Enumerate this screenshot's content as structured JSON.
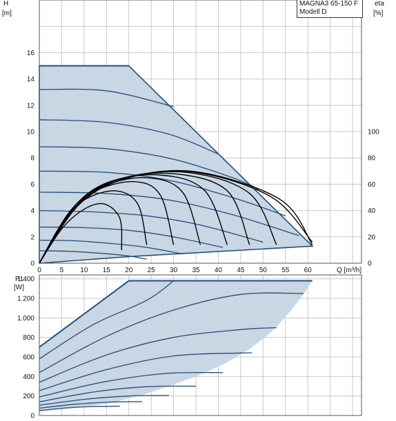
{
  "legend": {
    "line1": "MAGNA3 65-150 F",
    "line2": "Modell D"
  },
  "chart_data": [
    {
      "type": "line",
      "name": "head",
      "ylabel": "H",
      "yunit": "[m]",
      "xlabel": "Q [m³/h]",
      "xlim": [
        0,
        72
      ],
      "ylim": [
        0,
        20
      ],
      "xticks": [
        0,
        5,
        10,
        15,
        20,
        25,
        30,
        35,
        40,
        45,
        50,
        55,
        60
      ],
      "yticks": [
        0,
        2,
        4,
        6,
        8,
        10,
        12,
        14,
        16
      ],
      "y2label": "eta",
      "y2unit": "[%]",
      "y2lim": [
        0,
        200
      ],
      "y2ticks": [
        0,
        20,
        40,
        60,
        80,
        100
      ],
      "grid": true,
      "envelope": [
        [
          0,
          15
        ],
        [
          20,
          15
        ],
        [
          61,
          1.3
        ],
        [
          20,
          0.5
        ],
        [
          0,
          0
        ]
      ],
      "series": [
        {
          "values": [
            [
              0,
              15
            ],
            [
              20,
              15
            ]
          ]
        },
        {
          "values": [
            [
              0,
              13.2
            ],
            [
              15,
              13.1
            ],
            [
              30,
              11.9
            ]
          ]
        },
        {
          "values": [
            [
              0,
              10.9
            ],
            [
              15,
              10.7
            ],
            [
              29,
              9.8
            ],
            [
              40,
              8.3
            ]
          ]
        },
        {
          "values": [
            [
              0,
              8.85
            ],
            [
              15,
              8.7
            ],
            [
              30,
              7.9
            ],
            [
              44,
              6.4
            ],
            [
              49,
              5.6
            ]
          ]
        },
        {
          "values": [
            [
              0,
              7.0
            ],
            [
              15,
              6.9
            ],
            [
              29,
              6.3
            ],
            [
              44,
              4.9
            ],
            [
              55,
              3.6
            ]
          ]
        },
        {
          "values": [
            [
              0,
              5.4
            ],
            [
              15,
              5.3
            ],
            [
              29,
              4.8
            ],
            [
              43,
              3.7
            ],
            [
              58,
              2.1
            ]
          ]
        },
        {
          "values": [
            [
              0,
              4.0
            ],
            [
              12,
              3.9
            ],
            [
              24,
              3.6
            ],
            [
              36,
              2.9
            ],
            [
              50,
              1.6
            ]
          ]
        },
        {
          "values": [
            [
              0,
              2.75
            ],
            [
              10,
              2.7
            ],
            [
              20,
              2.5
            ],
            [
              30,
              2.0
            ],
            [
              41,
              1.2
            ]
          ]
        },
        {
          "values": [
            [
              0,
              1.75
            ],
            [
              8,
              1.7
            ],
            [
              16,
              1.5
            ],
            [
              24,
              1.2
            ],
            [
              32,
              0.7
            ]
          ]
        },
        {
          "values": [
            [
              0,
              0.95
            ],
            [
              7,
              0.9
            ],
            [
              14,
              0.75
            ],
            [
              20,
              0.55
            ],
            [
              24,
              0.3
            ]
          ]
        }
      ],
      "eta_series": [
        {
          "values": [
            [
              0,
              0
            ],
            [
              5,
              26
            ],
            [
              10,
              41
            ],
            [
              14.5,
              45
            ],
            [
              18,
              34
            ],
            [
              18.4,
              10
            ]
          ]
        },
        {
          "values": [
            [
              0,
              0
            ],
            [
              5,
              30
            ],
            [
              10,
              48
            ],
            [
              17,
              55
            ],
            [
              22,
              45
            ],
            [
              24,
              14
            ]
          ]
        },
        {
          "values": [
            [
              0,
              0
            ],
            [
              6,
              34
            ],
            [
              12,
              54
            ],
            [
              21,
              62
            ],
            [
              27,
              52
            ],
            [
              30,
              14
            ]
          ]
        },
        {
          "values": [
            [
              0,
              0
            ],
            [
              7,
              38
            ],
            [
              14,
              58
            ],
            [
              24,
              65
            ],
            [
              32,
              54
            ],
            [
              36,
              14
            ]
          ]
        },
        {
          "values": [
            [
              0,
              0
            ],
            [
              7,
              40
            ],
            [
              15,
              61
            ],
            [
              27,
              67
            ],
            [
              37,
              55
            ],
            [
              42,
              14
            ]
          ]
        },
        {
          "values": [
            [
              0,
              0
            ],
            [
              8,
              42
            ],
            [
              17,
              63
            ],
            [
              30,
              68
            ],
            [
              42,
              55
            ],
            [
              47,
              14
            ]
          ]
        },
        {
          "values": [
            [
              0,
              0
            ],
            [
              8,
              44
            ],
            [
              18,
              64
            ],
            [
              33,
              69
            ],
            [
              47,
              53
            ],
            [
              53,
              14
            ]
          ]
        },
        {
          "values": [
            [
              0,
              0
            ],
            [
              9,
              45
            ],
            [
              20,
              65
            ],
            [
              35,
              69
            ],
            [
              52,
              50
            ],
            [
              61,
              16
            ]
          ]
        },
        {
          "values": [
            [
              0,
              0
            ],
            [
              9,
              46
            ],
            [
              21,
              66
            ],
            [
              36,
              69
            ],
            [
              54,
              48
            ],
            [
              61,
              14
            ]
          ]
        }
      ]
    },
    {
      "type": "line",
      "name": "power",
      "ylabel": "P1",
      "yunit": "[W]",
      "xlim": [
        0,
        72
      ],
      "ylim": [
        0,
        1440
      ],
      "yticks": [
        0,
        200,
        400,
        600,
        800,
        1000,
        1200,
        1400
      ],
      "ytick_labels": [
        "0",
        "200",
        "400",
        "600",
        "800",
        "1.000",
        "1.200",
        "1.400"
      ],
      "grid": true,
      "envelope": [
        [
          0,
          700
        ],
        [
          20,
          1380
        ],
        [
          61,
          1380
        ],
        [
          59,
          1240
        ],
        [
          56,
          1060
        ],
        [
          52,
          860
        ],
        [
          47,
          680
        ],
        [
          41,
          520
        ],
        [
          35,
          400
        ],
        [
          29,
          300
        ],
        [
          23,
          210
        ],
        [
          17,
          140
        ],
        [
          11,
          90
        ],
        [
          0,
          40
        ]
      ],
      "series": [
        {
          "values": [
            [
              0,
              700
            ],
            [
              20,
              1380
            ],
            [
              61,
              1380
            ]
          ]
        },
        {
          "values": [
            [
              0,
              580
            ],
            [
              12,
              930
            ],
            [
              24,
              1180
            ],
            [
              30,
              1380
            ]
          ]
        },
        {
          "values": [
            [
              0,
              440
            ],
            [
              15,
              810
            ],
            [
              30,
              1080
            ],
            [
              45,
              1240
            ],
            [
              59,
              1250
            ]
          ]
        },
        {
          "values": [
            [
              0,
              340
            ],
            [
              15,
              620
            ],
            [
              30,
              800
            ],
            [
              45,
              880
            ],
            [
              53,
              900
            ]
          ]
        },
        {
          "values": [
            [
              0,
              255
            ],
            [
              15,
              470
            ],
            [
              30,
              610
            ],
            [
              45,
              640
            ],
            [
              47.5,
              640
            ]
          ]
        },
        {
          "values": [
            [
              0,
              190
            ],
            [
              14,
              340
            ],
            [
              28,
              430
            ],
            [
              41,
              440
            ]
          ]
        },
        {
          "values": [
            [
              0,
              140
            ],
            [
              12,
              240
            ],
            [
              24,
              295
            ],
            [
              35,
              300
            ]
          ]
        },
        {
          "values": [
            [
              0,
              105
            ],
            [
              10,
              165
            ],
            [
              20,
              200
            ],
            [
              29,
              205
            ]
          ]
        },
        {
          "values": [
            [
              0,
              75
            ],
            [
              8,
              115
            ],
            [
              16,
              138
            ],
            [
              23,
              142
            ]
          ]
        },
        {
          "values": [
            [
              0,
              50
            ],
            [
              6,
              78
            ],
            [
              12,
              92
            ],
            [
              18,
              95
            ]
          ]
        }
      ]
    }
  ]
}
